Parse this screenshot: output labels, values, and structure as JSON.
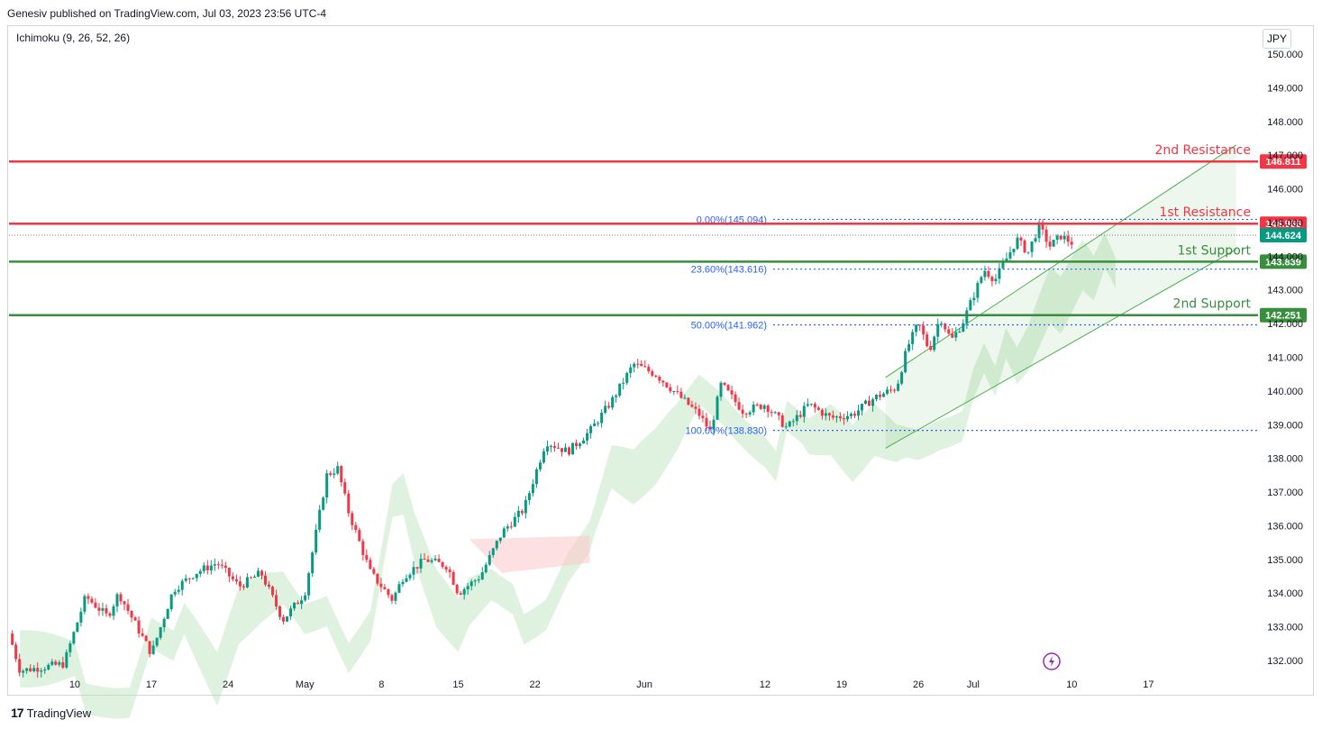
{
  "header": {
    "published": "Genesiv published on TradingView.com, Jul 03, 2023 23:56 UTC-4"
  },
  "indicator": {
    "label": "Ichimoku (9, 26, 52, 26)"
  },
  "currency": "JPY",
  "footer": {
    "brand": "TradingView",
    "logo": "17"
  },
  "chart_data": {
    "type": "candlestick",
    "y_axis": {
      "ticks": [
        132.0,
        133.0,
        134.0,
        135.0,
        136.0,
        137.0,
        138.0,
        139.0,
        140.0,
        141.0,
        142.0,
        143.0,
        144.0,
        145.0,
        146.0,
        147.0,
        148.0,
        149.0,
        150.0
      ],
      "tick_labels": [
        "132.000",
        "133.000",
        "134.000",
        "135.000",
        "136.000",
        "137.000",
        "138.000",
        "139.000",
        "140.000",
        "141.000",
        "142.000",
        "143.000",
        "144.000",
        "145.000",
        "146.000",
        "147.000",
        "148.000",
        "149.000",
        "150.000"
      ],
      "range": [
        131.6,
        150.6
      ]
    },
    "x_axis": {
      "tick_labels": [
        "10",
        "17",
        "24",
        "May",
        "8",
        "15",
        "22",
        "Jun",
        "12",
        "19",
        "26",
        "Jul",
        "10",
        "17"
      ],
      "tick_days": [
        9,
        16,
        23,
        30,
        37,
        44,
        51,
        61,
        72,
        79,
        86,
        91,
        100,
        107
      ],
      "day_range": [
        3,
        117
      ],
      "note_start": "2023-04-03"
    },
    "price_path": [
      [
        3,
        132.8
      ],
      [
        4,
        131.7
      ],
      [
        8,
        131.9
      ],
      [
        10,
        133.9
      ],
      [
        12,
        133.3
      ],
      [
        13,
        134.0
      ],
      [
        16,
        132.2
      ],
      [
        18,
        134.1
      ],
      [
        20,
        134.6
      ],
      [
        22,
        134.9
      ],
      [
        24,
        134.2
      ],
      [
        26,
        134.6
      ],
      [
        28,
        133.2
      ],
      [
        30,
        134.0
      ],
      [
        32,
        137.5
      ],
      [
        33,
        137.7
      ],
      [
        34,
        136.4
      ],
      [
        36,
        134.6
      ],
      [
        38,
        133.8
      ],
      [
        39,
        134.5
      ],
      [
        41,
        135.0
      ],
      [
        43,
        134.8
      ],
      [
        44,
        134.0
      ],
      [
        46,
        134.5
      ],
      [
        48,
        135.8
      ],
      [
        50,
        136.5
      ],
      [
        52,
        138.5
      ],
      [
        54,
        138.2
      ],
      [
        56,
        138.8
      ],
      [
        58,
        139.7
      ],
      [
        60,
        140.8
      ],
      [
        62,
        140.5
      ],
      [
        64,
        139.9
      ],
      [
        66,
        139.3
      ],
      [
        67,
        138.8
      ],
      [
        68,
        140.2
      ],
      [
        70,
        139.4
      ],
      [
        72,
        139.6
      ],
      [
        74,
        138.9
      ],
      [
        76,
        139.6
      ],
      [
        78,
        139.2
      ],
      [
        80,
        139.3
      ],
      [
        82,
        139.8
      ],
      [
        84,
        140.1
      ],
      [
        85,
        141.3
      ],
      [
        86,
        142.0
      ],
      [
        87,
        141.2
      ],
      [
        88,
        142.2
      ],
      [
        89,
        141.5
      ],
      [
        90,
        142.0
      ],
      [
        91,
        142.8
      ],
      [
        92,
        143.6
      ],
      [
        93,
        143.3
      ],
      [
        94,
        143.9
      ],
      [
        95,
        144.5
      ],
      [
        96,
        144.1
      ],
      [
        97,
        144.9
      ],
      [
        98,
        144.3
      ],
      [
        99,
        144.6
      ],
      [
        100,
        144.4
      ]
    ],
    "horizontal_levels": [
      {
        "name": "2nd Resistance",
        "value": 146.811,
        "label": "146.811",
        "color": "#f23645"
      },
      {
        "name": "1st Resistance",
        "value": 144.966,
        "label": "144.966",
        "color": "#f23645"
      },
      {
        "name": "1st Support",
        "value": 143.839,
        "label": "143.839",
        "color": "#388e3c"
      },
      {
        "name": "2nd Support",
        "value": 142.251,
        "label": "142.251",
        "color": "#388e3c"
      }
    ],
    "current_price": {
      "value": 144.624,
      "label": "144.624",
      "color": "#089981"
    },
    "fibonacci": [
      {
        "label": "0.00%(145.094)",
        "value": 145.094
      },
      {
        "label": "23.60%(143.616)",
        "value": 143.616
      },
      {
        "label": "50.00%(141.962)",
        "value": 141.962
      },
      {
        "label": "100.00%(138.830)",
        "value": 138.83
      }
    ],
    "channel": {
      "lower_line": [
        [
          83,
          138.3
        ],
        [
          115,
          144.2
        ]
      ],
      "upper_line": [
        [
          83,
          140.4
        ],
        [
          115,
          147.3
        ]
      ]
    },
    "colors": {
      "up": "#089981",
      "down": "#f23645",
      "cloud_green": "#b7dfb9",
      "cloud_red": "#fccbcd"
    }
  }
}
